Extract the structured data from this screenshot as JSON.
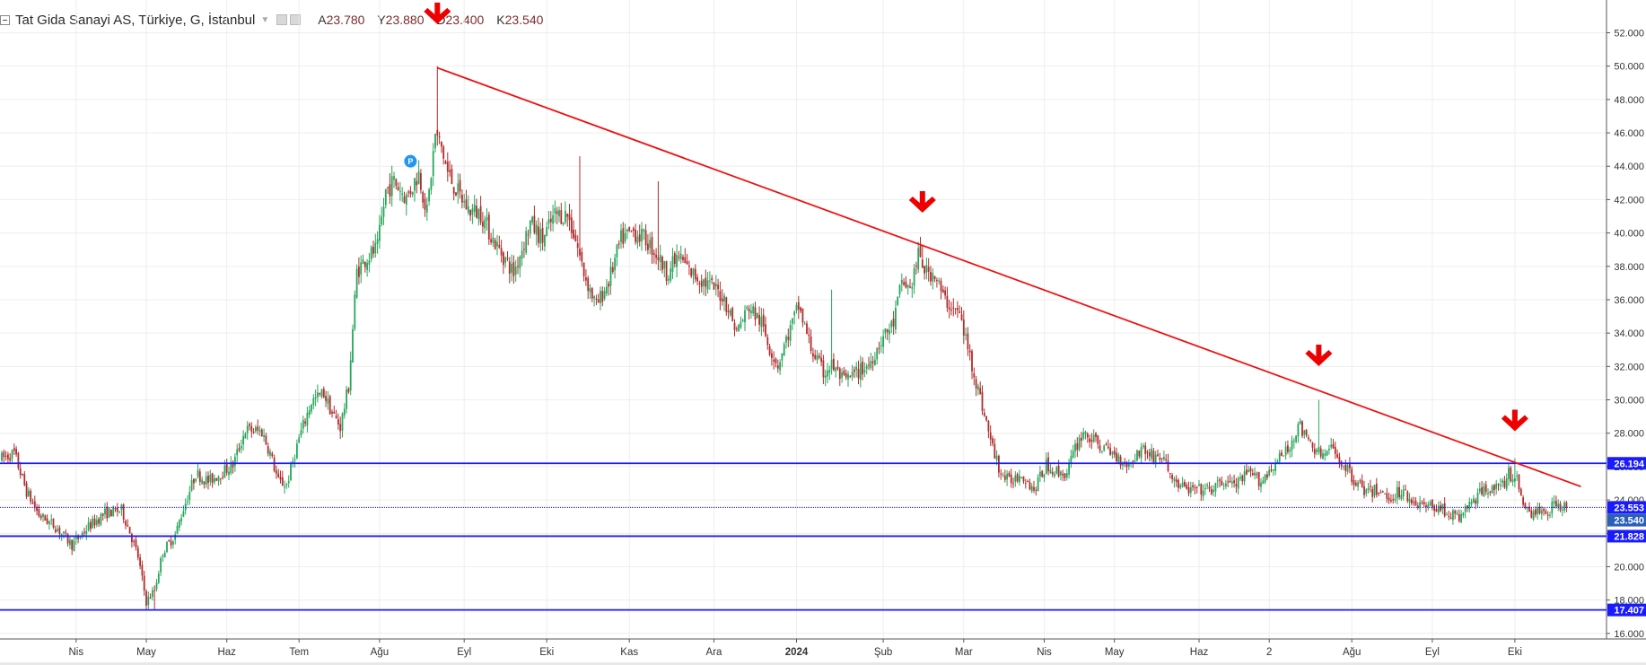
{
  "legend": {
    "title": "Tat Gida Sanayi AS, Türkiye, G, İstanbul",
    "open_label": "A",
    "open": "23.780",
    "high_label": "Y",
    "high": "23.880",
    "low_label": "D",
    "low": "23.400",
    "close_label": "K",
    "close": "23.540"
  },
  "colors": {
    "up": "#26a65b",
    "down": "#b22b2b",
    "trendline": "#ee1111",
    "arrow": "#ee0000",
    "hline": "#1a1aff",
    "price_label_bg": "#1a1aff",
    "grid": "#eeeeee",
    "marker": "#2196f3"
  },
  "marker_label": "P",
  "chart_data": {
    "type": "candlestick",
    "title": "Tat Gida Sanayi AS, Türkiye, G, İstanbul",
    "ylim": [
      15,
      53.5
    ],
    "y_ticks": [
      "16.000",
      "18.000",
      "20.000",
      "22.000",
      "24.000",
      "26.000",
      "28.000",
      "30.000",
      "32.000",
      "34.000",
      "36.000",
      "38.000",
      "40.000",
      "42.000",
      "44.000",
      "46.000",
      "48.000",
      "50.000",
      "52.000"
    ],
    "x_ticks": [
      {
        "label": "Nis",
        "t": 36
      },
      {
        "label": "May",
        "t": 70
      },
      {
        "label": "Haz",
        "t": 109
      },
      {
        "label": "Tem",
        "t": 144
      },
      {
        "label": "Ağu",
        "t": 183
      },
      {
        "label": "Eyl",
        "t": 224
      },
      {
        "label": "Eki",
        "t": 264
      },
      {
        "label": "Kas",
        "t": 304
      },
      {
        "label": "Ara",
        "t": 345
      },
      {
        "label": "2024",
        "t": 385
      },
      {
        "label": "Şub",
        "t": 427
      },
      {
        "label": "Mar",
        "t": 466
      },
      {
        "label": "Nis",
        "t": 505
      },
      {
        "label": "May",
        "t": 539
      },
      {
        "label": "Haz",
        "t": 580
      },
      {
        "label": "2",
        "t": 614
      },
      {
        "label": "Ağu",
        "t": 654
      },
      {
        "label": "Eyl",
        "t": 693
      },
      {
        "label": "Eki",
        "t": 733
      }
    ],
    "x_range": [
      0,
      765
    ],
    "series_anchors": [
      [
        0,
        26.5
      ],
      [
        6,
        26.8
      ],
      [
        12,
        24.5
      ],
      [
        18,
        23.1
      ],
      [
        26,
        22.4
      ],
      [
        34,
        21.3
      ],
      [
        42,
        22.4
      ],
      [
        50,
        23.2
      ],
      [
        58,
        23.4
      ],
      [
        62,
        22.1
      ],
      [
        66,
        20.6
      ],
      [
        70,
        17.9
      ],
      [
        74,
        18.6
      ],
      [
        78,
        20.9
      ],
      [
        84,
        21.9
      ],
      [
        88,
        23.5
      ],
      [
        94,
        25.6
      ],
      [
        100,
        25.1
      ],
      [
        106,
        25.6
      ],
      [
        112,
        26.1
      ],
      [
        118,
        28.2
      ],
      [
        126,
        28.1
      ],
      [
        130,
        26.8
      ],
      [
        134,
        25.1
      ],
      [
        138,
        24.9
      ],
      [
        144,
        27.7
      ],
      [
        150,
        29.9
      ],
      [
        156,
        30.4
      ],
      [
        160,
        29.2
      ],
      [
        164,
        28.4
      ],
      [
        168,
        30.8
      ],
      [
        172,
        37.7
      ],
      [
        176,
        38.4
      ],
      [
        182,
        39.1
      ],
      [
        186,
        42.5
      ],
      [
        190,
        43.1
      ],
      [
        196,
        42.1
      ],
      [
        202,
        43.6
      ],
      [
        206,
        41.2
      ],
      [
        210,
        45.9
      ],
      [
        213,
        45.1
      ],
      [
        216,
        43.6
      ],
      [
        220,
        42.6
      ],
      [
        226,
        41.4
      ],
      [
        232,
        41.2
      ],
      [
        238,
        39.6
      ],
      [
        244,
        38.4
      ],
      [
        248,
        37.6
      ],
      [
        256,
        40.6
      ],
      [
        262,
        39.6
      ],
      [
        268,
        41.1
      ],
      [
        274,
        41.1
      ],
      [
        278,
        39.6
      ],
      [
        282,
        37.6
      ],
      [
        288,
        35.6
      ],
      [
        294,
        37.1
      ],
      [
        300,
        39.6
      ],
      [
        306,
        40.1
      ],
      [
        312,
        39.6
      ],
      [
        318,
        38.6
      ],
      [
        322,
        37.6
      ],
      [
        328,
        38.6
      ],
      [
        334,
        37.6
      ],
      [
        340,
        37.1
      ],
      [
        346,
        36.6
      ],
      [
        350,
        36.1
      ],
      [
        356,
        34.1
      ],
      [
        362,
        35.6
      ],
      [
        368,
        34.6
      ],
      [
        372,
        33.1
      ],
      [
        376,
        32.1
      ],
      [
        380,
        33.6
      ],
      [
        386,
        35.6
      ],
      [
        392,
        33.1
      ],
      [
        398,
        31.6
      ],
      [
        402,
        32.1
      ],
      [
        408,
        31.1
      ],
      [
        414,
        31.6
      ],
      [
        420,
        32.1
      ],
      [
        426,
        33.6
      ],
      [
        432,
        34.6
      ],
      [
        436,
        37.1
      ],
      [
        440,
        36.6
      ],
      [
        444,
        38.6
      ],
      [
        448,
        37.6
      ],
      [
        452,
        37.6
      ],
      [
        456,
        36.1
      ],
      [
        460,
        35.6
      ],
      [
        464,
        35.1
      ],
      [
        468,
        33.1
      ],
      [
        472,
        31.1
      ],
      [
        476,
        29.1
      ],
      [
        480,
        27.1
      ],
      [
        484,
        25.6
      ],
      [
        488,
        25.1
      ],
      [
        494,
        25.6
      ],
      [
        500,
        24.6
      ],
      [
        506,
        26.1
      ],
      [
        512,
        25.6
      ],
      [
        516,
        25.6
      ],
      [
        520,
        27.1
      ],
      [
        524,
        28.1
      ],
      [
        528,
        27.6
      ],
      [
        534,
        27.1
      ],
      [
        540,
        26.6
      ],
      [
        546,
        26.1
      ],
      [
        552,
        27.1
      ],
      [
        558,
        26.6
      ],
      [
        562,
        26.6
      ],
      [
        568,
        25.1
      ],
      [
        574,
        24.6
      ],
      [
        580,
        24.6
      ],
      [
        586,
        24.6
      ],
      [
        592,
        25.1
      ],
      [
        598,
        24.9
      ],
      [
        604,
        25.6
      ],
      [
        610,
        25.1
      ],
      [
        616,
        26.1
      ],
      [
        620,
        26.6
      ],
      [
        624,
        27.1
      ],
      [
        628,
        28.6
      ],
      [
        632,
        27.6
      ],
      [
        636,
        27.1
      ],
      [
        640,
        26.6
      ],
      [
        644,
        27.1
      ],
      [
        650,
        26.1
      ],
      [
        656,
        25.1
      ],
      [
        662,
        24.4
      ],
      [
        666,
        24.6
      ],
      [
        672,
        24.1
      ],
      [
        678,
        24.6
      ],
      [
        684,
        23.9
      ],
      [
        690,
        23.6
      ],
      [
        696,
        23.6
      ],
      [
        702,
        23.1
      ],
      [
        706,
        22.9
      ],
      [
        710,
        23.6
      ],
      [
        714,
        24.1
      ],
      [
        718,
        24.6
      ],
      [
        722,
        24.9
      ],
      [
        726,
        24.6
      ],
      [
        730,
        25.6
      ],
      [
        734,
        25.1
      ],
      [
        738,
        23.6
      ],
      [
        742,
        23.1
      ],
      [
        746,
        23.4
      ],
      [
        750,
        23.4
      ],
      [
        752,
        23.9
      ],
      [
        756,
        23.6
      ],
      [
        758,
        23.54
      ]
    ],
    "peaks": [
      [
        211,
        50.0
      ],
      [
        74,
        17.45
      ],
      [
        446,
        39.3
      ],
      [
        638,
        30.0
      ],
      [
        733,
        26.5
      ],
      [
        280,
        44.6
      ],
      [
        318,
        43.1
      ],
      [
        402,
        36.6
      ]
    ],
    "trendline": {
      "from": {
        "t": 211,
        "price": 49.9
      },
      "to": {
        "t": 765,
        "price": 24.8
      }
    },
    "arrows": [
      {
        "t": 211,
        "price": 53.0
      },
      {
        "t": 446,
        "price": 41.7
      },
      {
        "t": 638,
        "price": 32.5
      },
      {
        "t": 733,
        "price": 28.6
      }
    ],
    "marker": {
      "t": 198,
      "price": 44.3
    },
    "horizontal_lines": [
      {
        "price": 26.194,
        "label": "26.194",
        "style": "solid"
      },
      {
        "price": 23.553,
        "label": "23.553",
        "style": "dotted"
      },
      {
        "price": 21.828,
        "label": "21.828",
        "style": "solid"
      },
      {
        "price": 17.407,
        "label": "17.407",
        "style": "solid"
      }
    ],
    "last_price": {
      "price": 23.54,
      "label": "23.540"
    }
  }
}
